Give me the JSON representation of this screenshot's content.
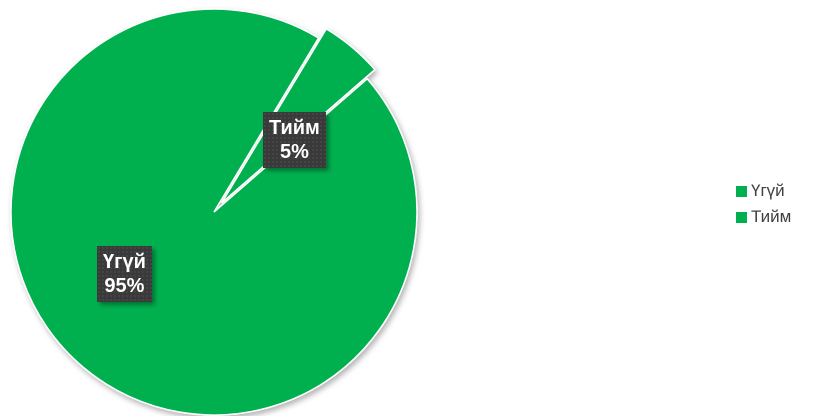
{
  "chart_data": {
    "type": "pie",
    "slices": [
      {
        "label": "Үгүй",
        "value": 95,
        "value_label": "95%",
        "color": "#00b050"
      },
      {
        "label": "Тийм",
        "value": 5,
        "value_label": "5%",
        "color": "#00b050"
      }
    ],
    "legend_position": "right",
    "exploded_slice": "Тийм"
  },
  "legend": {
    "items": [
      {
        "label": "Үгүй",
        "color": "#00b050"
      },
      {
        "label": "Тийм",
        "color": "#00b050"
      }
    ]
  }
}
